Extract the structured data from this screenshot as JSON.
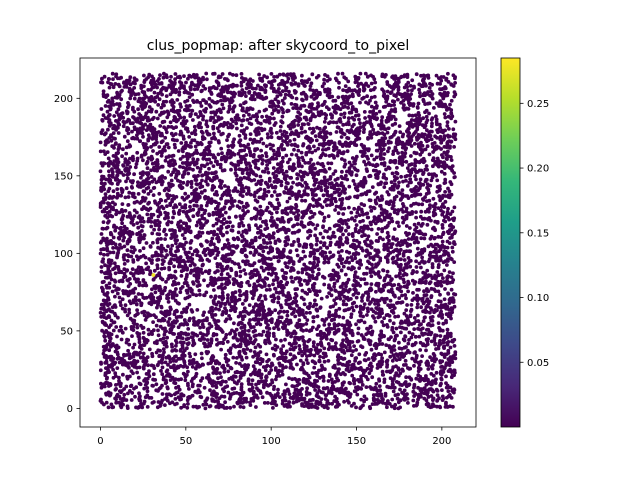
{
  "chart_data": {
    "type": "scatter",
    "title": "clus_popmap: after skycoord_to_pixel",
    "xlabel": "",
    "ylabel": "",
    "xlim": [
      -12,
      220
    ],
    "ylim": [
      -12,
      226
    ],
    "x_ticks": [
      0,
      50,
      100,
      150,
      200
    ],
    "x_tick_labels": [
      "0",
      "50",
      "100",
      "150",
      "200"
    ],
    "y_ticks": [
      0,
      50,
      100,
      150,
      200
    ],
    "y_tick_labels": [
      "0",
      "50",
      "100",
      "150",
      "200"
    ],
    "grid": false,
    "point_field": {
      "x_range": [
        0,
        208
      ],
      "y_range": [
        0,
        216
      ],
      "count": 22000,
      "value": 0.0,
      "voids": [
        {
          "x": 59,
          "y": 68,
          "r": 5
        },
        {
          "x": 57,
          "y": 60,
          "r": 3
        },
        {
          "x": 132,
          "y": 90,
          "r": 4
        },
        {
          "x": 74,
          "y": 150,
          "r": 3
        }
      ]
    },
    "highlights": [
      {
        "x": 31,
        "y": 86,
        "value": 0.28
      }
    ],
    "colorbar": {
      "cmap": "viridis",
      "range": [
        0.0,
        0.285
      ],
      "ticks": [
        0.05,
        0.1,
        0.15,
        0.2,
        0.25
      ],
      "tick_labels": [
        "0.05",
        "0.10",
        "0.15",
        "0.20",
        "0.25"
      ],
      "colors": [
        "#440154",
        "#482878",
        "#3e4989",
        "#31688e",
        "#26828e",
        "#1f9e89",
        "#35b779",
        "#6ece58",
        "#b5de2b",
        "#fde725"
      ]
    }
  }
}
